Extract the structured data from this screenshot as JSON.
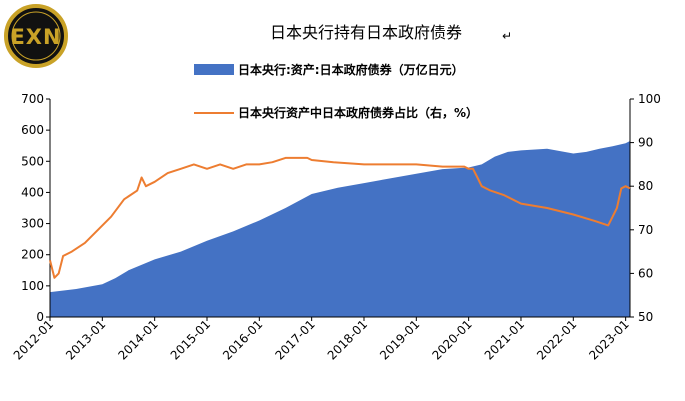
{
  "logo": {
    "text": "EXN",
    "ring_color": "#c9a227",
    "bg_color": "#111111"
  },
  "title_mark": "↵",
  "chart_data": {
    "type": "area",
    "title": "日本央行持有日本政府债券",
    "x_tick_labels": [
      "2012-01",
      "2013-01",
      "2014-01",
      "2015-01",
      "2016-01",
      "2017-01",
      "2018-01",
      "2019-01",
      "2020-01",
      "2021-01",
      "2022-01",
      "2023-01"
    ],
    "x_range": [
      "2012-01",
      "2023-02"
    ],
    "y_left": {
      "ticks": [
        0,
        100,
        200,
        300,
        400,
        500,
        600,
        700
      ],
      "range": [
        0,
        700
      ],
      "unit": "万亿日元"
    },
    "y_right": {
      "ticks": [
        50,
        60,
        70,
        80,
        90,
        100
      ],
      "range": [
        50,
        100
      ],
      "unit": "%"
    },
    "grid": false,
    "legend_position": "top-center",
    "series": [
      {
        "name": "日本央行:资产:日本政府债券（万亿日元）",
        "type": "area",
        "axis": "left",
        "color": "#4472c4",
        "x": [
          "2012-01",
          "2012-07",
          "2013-01",
          "2013-04",
          "2013-07",
          "2014-01",
          "2014-07",
          "2015-01",
          "2015-07",
          "2016-01",
          "2016-07",
          "2017-01",
          "2017-07",
          "2018-01",
          "2018-07",
          "2019-01",
          "2019-07",
          "2020-01",
          "2020-04",
          "2020-07",
          "2020-10",
          "2021-01",
          "2021-07",
          "2022-01",
          "2022-04",
          "2022-07",
          "2022-10",
          "2023-01",
          "2023-02"
        ],
        "values": [
          80,
          90,
          105,
          125,
          150,
          185,
          210,
          245,
          275,
          310,
          350,
          395,
          415,
          430,
          445,
          460,
          475,
          480,
          490,
          515,
          530,
          535,
          540,
          525,
          530,
          540,
          548,
          558,
          565
        ]
      },
      {
        "name": "日本央行资产中日本政府债券占比（右，%）",
        "type": "line",
        "axis": "right",
        "color": "#ed7d31",
        "x": [
          "2012-01",
          "2012-02",
          "2012-03",
          "2012-04",
          "2012-06",
          "2012-09",
          "2012-12",
          "2013-03",
          "2013-06",
          "2013-09",
          "2013-10",
          "2013-11",
          "2014-01",
          "2014-04",
          "2014-07",
          "2014-10",
          "2015-01",
          "2015-04",
          "2015-07",
          "2015-10",
          "2016-01",
          "2016-04",
          "2016-07",
          "2016-10",
          "2016-12",
          "2017-01",
          "2017-06",
          "2018-01",
          "2018-07",
          "2019-01",
          "2019-07",
          "2019-12",
          "2020-01",
          "2020-02",
          "2020-03",
          "2020-04",
          "2020-06",
          "2020-09",
          "2021-01",
          "2021-07",
          "2022-01",
          "2022-06",
          "2022-09",
          "2022-10",
          "2022-11",
          "2022-12",
          "2023-01",
          "2023-02"
        ],
        "values": [
          63,
          59,
          60,
          64,
          65,
          67,
          70,
          73,
          77,
          79,
          82,
          80,
          81,
          83,
          84,
          85,
          84,
          85,
          84,
          85,
          85,
          85.5,
          86.5,
          86.5,
          86.5,
          86,
          85.5,
          85,
          85,
          85,
          84.5,
          84.5,
          84,
          84,
          82,
          80,
          79,
          78,
          76,
          75,
          73.5,
          72,
          71,
          73,
          75,
          79.5,
          80,
          79.5
        ]
      }
    ]
  }
}
